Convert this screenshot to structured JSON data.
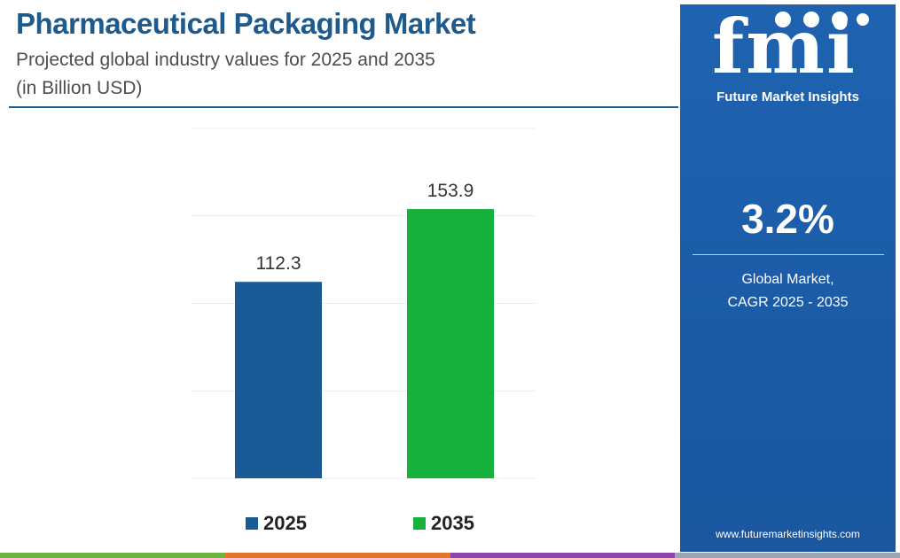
{
  "header": {
    "title": "Pharmaceutical Packaging Market",
    "subtitle": "Projected global industry values for 2025 and 2035",
    "unit": "(in Billion USD)"
  },
  "chart_data": {
    "type": "bar",
    "categories": [
      "2025",
      "2035"
    ],
    "values": [
      112.3,
      153.9
    ],
    "value_labels": [
      "112.3",
      "153.9"
    ],
    "colors": [
      "#1a5a96",
      "#16b03c"
    ],
    "ylim": [
      0,
      200
    ],
    "grid": true,
    "legend": {
      "placement": "bottom",
      "entries": [
        "2025",
        "2035"
      ]
    }
  },
  "side_panel": {
    "logo_text": "fmi",
    "logo_subtitle": "Future Market Insights",
    "cagr_value": "3.2%",
    "cagr_line1": "Global Market,",
    "cagr_line2": "CAGR 2025 - 2035",
    "website": "www.futuremarketinsights.com"
  },
  "colors": {
    "title": "#1e5a8c",
    "panel": "#1f63b0",
    "bottom_strip": [
      "#6cb33f",
      "#e2762d",
      "#8e44ad",
      "#9aa5b1"
    ]
  }
}
